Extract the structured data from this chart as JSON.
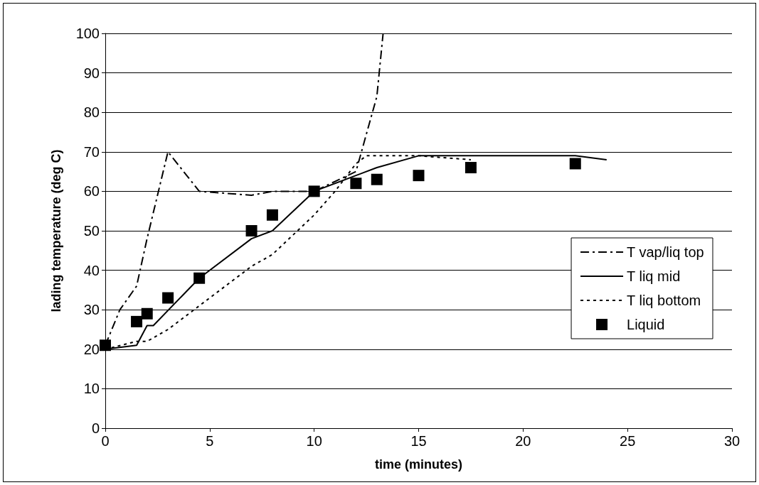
{
  "chart_data": {
    "type": "line",
    "xlabel": "time (minutes)",
    "ylabel": "lading temperature (deg C)",
    "xlim": [
      0,
      30
    ],
    "xticks": [
      0,
      5,
      10,
      15,
      20,
      25,
      30
    ],
    "ylim": [
      0,
      100
    ],
    "yticks": [
      0,
      10,
      20,
      30,
      40,
      50,
      60,
      70,
      80,
      90,
      100
    ],
    "grid": "y",
    "legend": "right",
    "marker": "none",
    "series": [
      {
        "name": "T vap/liq top",
        "color": "#000000",
        "line_style": "dashed",
        "x": [
          0,
          0.7,
          1.5,
          2,
          3,
          4.5,
          7,
          8,
          10,
          12,
          13,
          13.3
        ],
        "values": [
          21,
          30,
          36,
          48,
          70,
          60,
          59,
          60,
          60,
          65,
          84,
          100
        ]
      },
      {
        "name": "T liq mid",
        "color": "#000000",
        "line_style": "solid",
        "x": [
          0,
          1.5,
          2,
          2.3,
          4.5,
          7,
          8,
          10,
          12,
          13,
          15,
          22.5,
          24
        ],
        "values": [
          20,
          21,
          26,
          26,
          38,
          48,
          50,
          60,
          64,
          66,
          69,
          69,
          68
        ]
      },
      {
        "name": "T liq bottom",
        "color": "#000000",
        "line_style": "dotted",
        "x": [
          0,
          1.5,
          2,
          3,
          4.5,
          7,
          8,
          10,
          11,
          12,
          12.5,
          15,
          17.5
        ],
        "values": [
          20,
          22,
          22,
          25,
          31,
          41,
          44,
          54,
          60,
          67,
          69,
          69,
          68
        ]
      },
      {
        "name": "Liquid",
        "type": "scatter",
        "marker": "square",
        "color": "#000000",
        "x": [
          0,
          1.5,
          2,
          3,
          4.5,
          7,
          8,
          10,
          12,
          13,
          15,
          17.5,
          22.5
        ],
        "values": [
          21,
          27,
          29,
          33,
          38,
          50,
          54,
          60,
          62,
          63,
          64,
          66,
          67
        ]
      }
    ]
  }
}
